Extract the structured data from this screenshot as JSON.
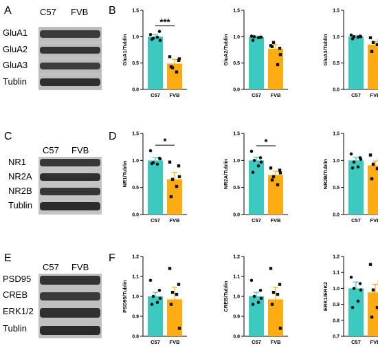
{
  "panels": [
    "A",
    "B",
    "C",
    "D",
    "E",
    "F"
  ],
  "blots": [
    {
      "panel": "A",
      "columns": [
        "C57",
        "FVB"
      ],
      "rows": [
        "GluA1",
        "GluA2",
        "GluA3",
        "Tublin"
      ]
    },
    {
      "panel": "C",
      "columns": [
        "C57",
        "FVB"
      ],
      "rows": [
        "NR1",
        "NR2A",
        "NR2B",
        "Tublin"
      ]
    },
    {
      "panel": "E",
      "columns": [
        "C57",
        "FVB"
      ],
      "rows": [
        "PSD95",
        "CREB",
        "ERK1/2",
        "Tublin"
      ]
    }
  ],
  "colors": {
    "C57": "#3cc9c0",
    "FVB": "#ffab12",
    "points": "#111111",
    "axis": "#000000"
  },
  "chart_data": [
    {
      "type": "bar",
      "panel": "B",
      "ylabel": "GluA1/Tublin",
      "categories": [
        "C57",
        "FVB"
      ],
      "ylim": [
        0,
        1.5
      ],
      "yticks": [
        "0.0",
        "0.5",
        "1.0",
        "1.5"
      ],
      "values": [
        1.0,
        0.49
      ],
      "errors": [
        0.04,
        0.08
      ],
      "points": [
        [
          1.04,
          1.1,
          0.97,
          0.99,
          0.95,
          0.93
        ],
        [
          0.62,
          0.55,
          0.41,
          0.33,
          0.43,
          0.58
        ]
      ],
      "significance": "***"
    },
    {
      "type": "bar",
      "panel": "B",
      "ylabel": "GluA2/Tublin",
      "categories": [
        "C57",
        "FVB"
      ],
      "ylim": [
        0,
        1.5
      ],
      "yticks": [
        "0.0",
        "0.5",
        "1.0",
        "1.5"
      ],
      "values": [
        0.99,
        0.77
      ],
      "errors": [
        0.02,
        0.08
      ],
      "points": [
        [
          1.01,
          0.99,
          1.0,
          0.98,
          0.93,
          0.99
        ],
        [
          0.83,
          0.78,
          0.89,
          0.47,
          0.81,
          0.66
        ]
      ]
    },
    {
      "type": "bar",
      "panel": "B",
      "ylabel": "GluA3/Tublin",
      "categories": [
        "C57",
        "FVB"
      ],
      "ylim": [
        0,
        1.5
      ],
      "yticks": [
        "0.0",
        "0.5",
        "1.0",
        "1.5"
      ],
      "values": [
        1.0,
        0.85
      ],
      "errors": [
        0.02,
        0.06
      ],
      "points": [
        [
          1.03,
          1.01,
          1.0,
          0.99,
          0.96,
          1.0
        ],
        [
          0.98,
          0.94,
          0.89,
          0.85,
          0.72,
          0.68
        ]
      ]
    },
    {
      "type": "bar",
      "panel": "D",
      "ylabel": "NR1/Tublin",
      "categories": [
        "C57",
        "FVB"
      ],
      "ylim": [
        0,
        1.5
      ],
      "yticks": [
        "0.0",
        "0.5",
        "1.0",
        "1.5"
      ],
      "values": [
        1.0,
        0.65
      ],
      "errors": [
        0.05,
        0.13
      ],
      "points": [
        [
          1.18,
          1.04,
          0.96,
          0.93,
          0.94,
          1.03
        ],
        [
          0.97,
          0.9,
          0.65,
          0.52,
          0.33,
          0.7
        ]
      ],
      "significance": "*"
    },
    {
      "type": "bar",
      "panel": "D",
      "ylabel": "NR2A/Tublin",
      "categories": [
        "C57",
        "FVB"
      ],
      "ylim": [
        0,
        1.5
      ],
      "yticks": [
        "0.0",
        "0.5",
        "1.0",
        "1.5"
      ],
      "values": [
        1.0,
        0.73
      ],
      "errors": [
        0.06,
        0.07
      ],
      "points": [
        [
          1.17,
          1.05,
          1.0,
          0.9,
          0.78,
          0.97
        ],
        [
          0.86,
          0.82,
          0.7,
          0.55,
          0.64,
          0.77
        ]
      ],
      "significance": "*"
    },
    {
      "type": "bar",
      "panel": "D",
      "ylabel": "NR2B/Tublin",
      "categories": [
        "C57",
        "FVB"
      ],
      "ylim": [
        0,
        1.5
      ],
      "yticks": [
        "0.0",
        "0.5",
        "1.0",
        "1.5"
      ],
      "values": [
        1.0,
        0.91
      ],
      "errors": [
        0.06,
        0.08
      ],
      "points": [
        [
          1.12,
          1.05,
          0.97,
          0.88,
          0.86,
          1.02
        ],
        [
          1.1,
          1.02,
          0.93,
          0.85,
          0.66,
          0.78
        ]
      ]
    },
    {
      "type": "bar",
      "panel": "F",
      "ylabel": "PSD95/Tublin",
      "categories": [
        "C57",
        "FVB"
      ],
      "ylim": [
        0.8,
        1.2
      ],
      "yticks": [
        "0.8",
        "0.9",
        "1.0",
        "1.1",
        "1.2"
      ],
      "values": [
        1.0,
        0.985
      ],
      "errors": [
        0.02,
        0.06
      ],
      "points": [
        [
          1.08,
          1.03,
          1.0,
          0.97,
          0.96,
          0.99
        ],
        [
          1.14,
          1.06,
          1.02,
          1.01,
          0.96,
          0.84
        ]
      ]
    },
    {
      "type": "bar",
      "panel": "F",
      "ylabel": "CREB/Tublin",
      "categories": [
        "C57",
        "FVB"
      ],
      "ylim": [
        0.8,
        1.2
      ],
      "yticks": [
        "0.8",
        "0.9",
        "1.0",
        "1.1",
        "1.2"
      ],
      "values": [
        1.0,
        0.985
      ],
      "errors": [
        0.02,
        0.06
      ],
      "points": [
        [
          1.08,
          1.03,
          1.0,
          0.97,
          0.96,
          0.99
        ],
        [
          1.14,
          1.06,
          1.02,
          1.01,
          0.96,
          0.84
        ]
      ]
    },
    {
      "type": "bar",
      "panel": "F",
      "ylabel": "ERK1/ERK2",
      "categories": [
        "C57",
        "FVB"
      ],
      "ylim": [
        0.7,
        1.2
      ],
      "yticks": [
        "0.7",
        "0.8",
        "0.9",
        "1.0",
        "1.1",
        "1.2"
      ],
      "values": [
        1.0,
        0.975
      ],
      "errors": [
        0.04,
        0.05
      ],
      "points": [
        [
          1.07,
          1.03,
          1.0,
          0.92,
          0.88,
          0.99
        ],
        [
          1.15,
          1.04,
          0.99,
          0.88,
          0.82,
          0.97
        ]
      ]
    }
  ]
}
